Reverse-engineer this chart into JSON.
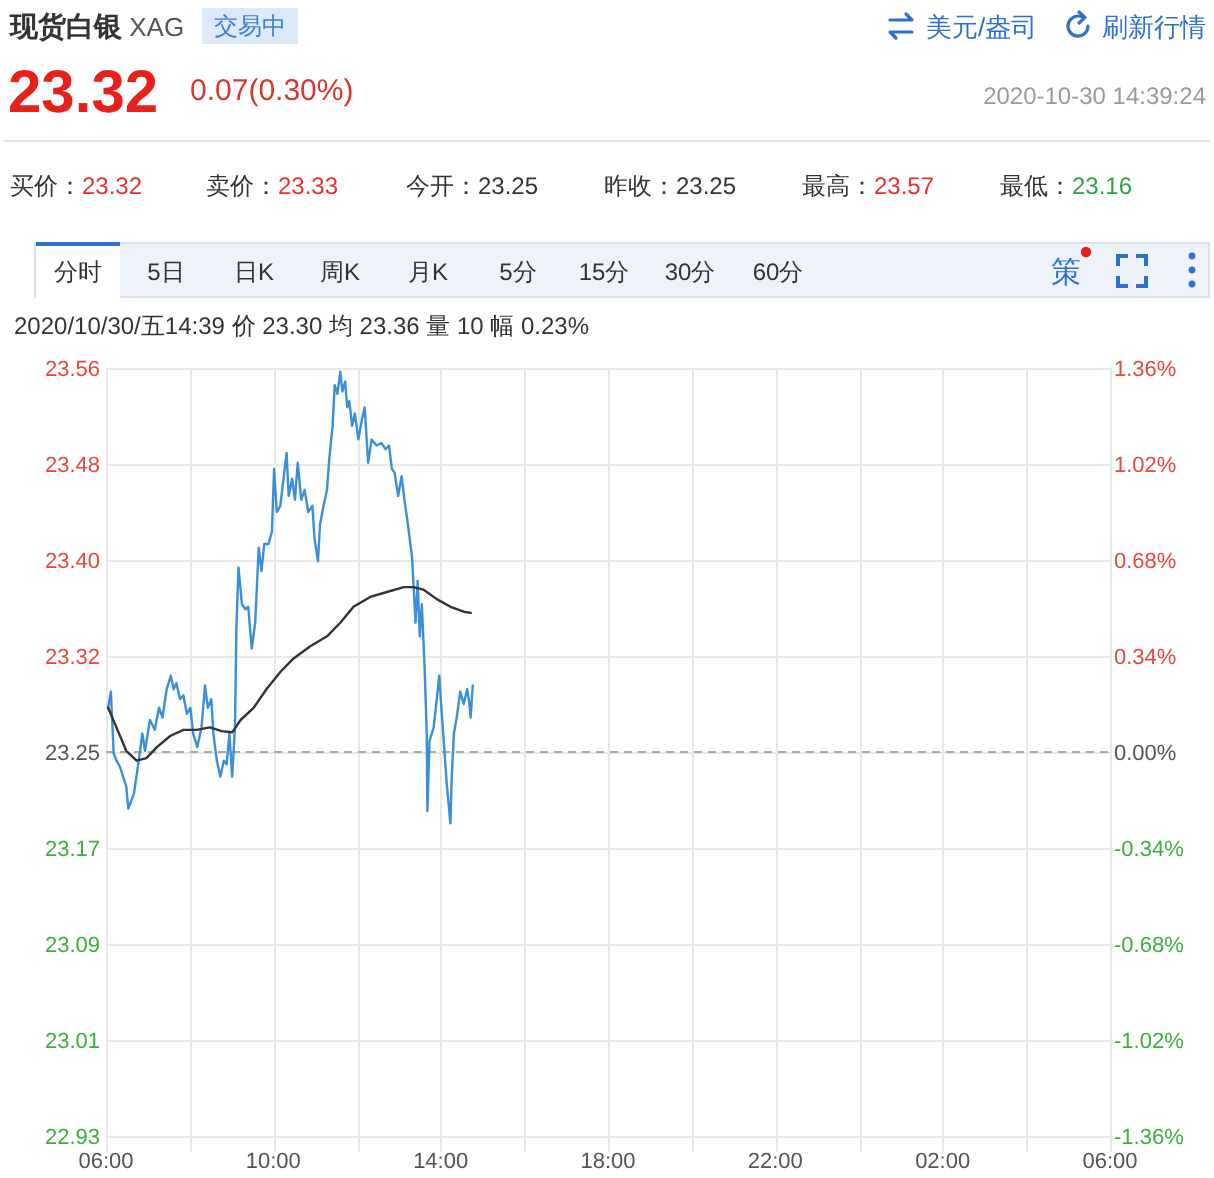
{
  "chart_data": [
    {
      "type": "other",
      "title": "现货白银 XAG",
      "annotations": [
        "交易中",
        "美元/盎司",
        "刷新行情",
        "23.32",
        "0.07(0.30%)",
        "2020-10-30 14:39:24",
        "买价：23.32",
        "卖价：23.33",
        "今开：23.25",
        "昨收：23.25",
        "最高：23.57",
        "最低：23.16",
        "分时",
        "5日",
        "日K",
        "周K",
        "月K",
        "5分",
        "15分",
        "30分",
        "60分",
        "策"
      ]
    },
    {
      "type": "line",
      "subtitle": "2020/10/30/五14:39 价 23.30 均 23.36 量 10 幅 0.23%",
      "xlim": [
        "2020-10-30T06:00",
        "2020-10-31T06:00"
      ],
      "xticks": [
        {
          "value": "2020-10-30T06:00",
          "label": "06:00"
        },
        {
          "value": "2020-10-30T08:00",
          "label": null
        },
        {
          "value": "2020-10-30T10:00",
          "label": "10:00"
        },
        {
          "value": "2020-10-30T12:00",
          "label": null
        },
        {
          "value": "2020-10-30T14:00",
          "label": "14:00"
        },
        {
          "value": "2020-10-30T16:00",
          "label": null
        },
        {
          "value": "2020-10-30T18:00",
          "label": "18:00"
        },
        {
          "value": "2020-10-30T20:00",
          "label": null
        },
        {
          "value": "2020-10-30T22:00",
          "label": "22:00"
        },
        {
          "value": "2020-10-31T00:00",
          "label": null
        },
        {
          "value": "2020-10-31T02:00",
          "label": "02:00"
        },
        {
          "value": "2020-10-31T04:00",
          "label": null
        },
        {
          "value": "2020-10-31T06:00",
          "label": "06:00"
        }
      ],
      "ylim": [
        22.934,
        23.558
      ],
      "yticks": [
        {
          "value": 22.934,
          "label": "22.93"
        },
        {
          "value": 23.012,
          "label": "23.01"
        },
        {
          "value": 23.09,
          "label": "23.09"
        },
        {
          "value": 23.168,
          "label": "23.17"
        },
        {
          "value": 23.246,
          "label": "23.25"
        },
        {
          "value": 23.324,
          "label": "23.32"
        },
        {
          "value": 23.402,
          "label": "23.40"
        },
        {
          "value": 23.48,
          "label": "23.48"
        },
        {
          "value": 23.558,
          "label": "23.56"
        }
      ],
      "y2lim": [
        -1.36,
        1.36
      ],
      "y2ticks": [
        {
          "value": -1.36,
          "label": "-1.36%"
        },
        {
          "value": -1.02,
          "label": "-1.02%"
        },
        {
          "value": -0.68,
          "label": "-0.68%"
        },
        {
          "value": -0.34,
          "label": "-0.34%"
        },
        {
          "value": 0,
          "label": "0.00%"
        },
        {
          "value": 0.34,
          "label": "0.34%"
        },
        {
          "value": 0.68,
          "label": "0.68%"
        },
        {
          "value": 1.02,
          "label": "1.02%"
        },
        {
          "value": 1.36,
          "label": "1.36%"
        }
      ],
      "grid": true,
      "ref_lines": [
        {
          "axis": "y",
          "value": 23.246,
          "color": "#aaaaaa",
          "line_style": "dashed"
        }
      ],
      "series": [
        {
          "color": "#3a8fd8",
          "x": [
            "2020-10-30T06:03",
            "2020-10-30T06:07",
            "2020-10-30T06:11",
            "2020-10-30T06:15",
            "2020-10-30T06:20",
            "2020-10-30T06:29",
            "2020-10-30T06:32",
            "2020-10-30T06:40",
            "2020-10-30T06:47",
            "2020-10-30T06:52",
            "2020-10-30T06:56",
            "2020-10-30T07:03",
            "2020-10-30T07:10",
            "2020-10-30T07:16",
            "2020-10-30T07:21",
            "2020-10-30T07:27",
            "2020-10-30T07:33",
            "2020-10-30T07:37",
            "2020-10-30T07:41",
            "2020-10-30T07:46",
            "2020-10-30T07:51",
            "2020-10-30T07:56",
            "2020-10-30T08:01",
            "2020-10-30T08:05",
            "2020-10-30T08:11",
            "2020-10-30T08:17",
            "2020-10-30T08:22",
            "2020-10-30T08:26",
            "2020-10-30T08:31",
            "2020-10-30T08:34",
            "2020-10-30T08:39",
            "2020-10-30T08:44",
            "2020-10-30T08:49",
            "2020-10-30T08:53",
            "2020-10-30T08:57",
            "2020-10-30T09:01",
            "2020-10-30T09:05",
            "2020-10-30T09:07",
            "2020-10-30T09:10",
            "2020-10-30T09:15",
            "2020-10-30T09:20",
            "2020-10-30T09:24",
            "2020-10-30T09:29",
            "2020-10-30T09:34",
            "2020-10-30T09:39",
            "2020-10-30T09:43",
            "2020-10-30T09:47",
            "2020-10-30T09:53",
            "2020-10-30T09:58",
            "2020-10-30T10:01",
            "2020-10-30T10:05",
            "2020-10-30T10:10",
            "2020-10-30T10:14",
            "2020-10-30T10:19",
            "2020-10-30T10:22",
            "2020-10-30T10:27",
            "2020-10-30T10:31",
            "2020-10-30T10:35",
            "2020-10-30T10:40",
            "2020-10-30T10:45",
            "2020-10-30T10:50",
            "2020-10-30T10:56",
            "2020-10-30T10:59",
            "2020-10-30T11:04",
            "2020-10-30T11:07",
            "2020-10-30T11:12",
            "2020-10-30T11:17",
            "2020-10-30T11:20",
            "2020-10-30T11:25",
            "2020-10-30T11:28",
            "2020-10-30T11:32",
            "2020-10-30T11:36",
            "2020-10-30T11:39",
            "2020-10-30T11:43",
            "2020-10-30T11:46",
            "2020-10-30T11:49",
            "2020-10-30T11:53",
            "2020-10-30T11:57",
            "2020-10-30T12:02",
            "2020-10-30T12:07",
            "2020-10-30T12:11",
            "2020-10-30T12:16",
            "2020-10-30T12:21",
            "2020-10-30T12:28",
            "2020-10-30T12:35",
            "2020-10-30T12:41",
            "2020-10-30T12:46",
            "2020-10-30T12:50",
            "2020-10-30T12:54",
            "2020-10-30T12:59",
            "2020-10-30T13:04",
            "2020-10-30T13:08",
            "2020-10-30T13:13",
            "2020-10-30T13:19",
            "2020-10-30T13:21",
            "2020-10-30T13:24",
            "2020-10-30T13:27",
            "2020-10-30T13:30",
            "2020-10-30T13:33",
            "2020-10-30T13:37",
            "2020-10-30T13:40",
            "2020-10-30T13:41",
            "2020-10-30T13:44",
            "2020-10-30T13:50",
            "2020-10-30T13:55",
            "2020-10-30T13:58",
            "2020-10-30T14:01",
            "2020-10-30T14:05",
            "2020-10-30T14:09",
            "2020-10-30T14:14",
            "2020-10-30T14:16",
            "2020-10-30T14:19",
            "2020-10-30T14:23",
            "2020-10-30T14:28",
            "2020-10-30T14:33",
            "2020-10-30T14:38",
            "2020-10-30T14:41",
            "2020-10-30T14:43",
            "2020-10-30T14:46"
          ],
          "values": [
            23.282,
            23.295,
            23.245,
            23.239,
            23.234,
            23.218,
            23.2,
            23.212,
            23.239,
            23.261,
            23.247,
            23.272,
            23.264,
            23.282,
            23.274,
            23.297,
            23.308,
            23.297,
            23.302,
            23.289,
            23.292,
            23.277,
            23.282,
            23.261,
            23.25,
            23.266,
            23.3,
            23.282,
            23.289,
            23.261,
            23.239,
            23.226,
            23.239,
            23.236,
            23.261,
            23.226,
            23.266,
            23.346,
            23.396,
            23.366,
            23.362,
            23.364,
            23.33,
            23.351,
            23.412,
            23.393,
            23.415,
            23.415,
            23.425,
            23.476,
            23.441,
            23.446,
            23.465,
            23.489,
            23.454,
            23.468,
            23.451,
            23.481,
            23.451,
            23.459,
            23.441,
            23.446,
            23.42,
            23.401,
            23.431,
            23.446,
            23.459,
            23.483,
            23.511,
            23.544,
            23.537,
            23.555,
            23.539,
            23.547,
            23.526,
            23.531,
            23.511,
            23.521,
            23.5,
            23.516,
            23.526,
            23.481,
            23.5,
            23.495,
            23.497,
            23.492,
            23.495,
            23.476,
            23.473,
            23.454,
            23.47,
            23.451,
            23.431,
            23.404,
            23.382,
            23.351,
            23.385,
            23.34,
            23.366,
            23.314,
            23.261,
            23.198,
            23.255,
            23.266,
            23.292,
            23.308,
            23.282,
            23.25,
            23.218,
            23.188,
            23.228,
            23.261,
            23.274,
            23.295,
            23.285,
            23.297,
            23.286,
            23.274,
            23.3
          ]
        },
        {
          "color": "#333333",
          "x": [
            "2020-10-30T06:03",
            "2020-10-30T06:15",
            "2020-10-30T06:29",
            "2020-10-30T06:44",
            "2020-10-30T06:58",
            "2020-10-30T07:13",
            "2020-10-30T07:32",
            "2020-10-30T07:51",
            "2020-10-30T08:10",
            "2020-10-30T08:29",
            "2020-10-30T08:46",
            "2020-10-30T09:01",
            "2020-10-30T09:13",
            "2020-10-30T09:32",
            "2020-10-30T09:50",
            "2020-10-30T10:10",
            "2020-10-30T10:29",
            "2020-10-30T10:53",
            "2020-10-30T11:17",
            "2020-10-30T11:36",
            "2020-10-30T11:55",
            "2020-10-30T12:19",
            "2020-10-30T12:43",
            "2020-10-30T13:07",
            "2020-10-30T13:21",
            "2020-10-30T13:35",
            "2020-10-30T13:55",
            "2020-10-30T14:14",
            "2020-10-30T14:33",
            "2020-10-30T14:43"
          ],
          "values": [
            23.282,
            23.266,
            23.247,
            23.239,
            23.241,
            23.25,
            23.259,
            23.264,
            23.264,
            23.266,
            23.263,
            23.262,
            23.272,
            23.282,
            23.297,
            23.311,
            23.322,
            23.332,
            23.34,
            23.351,
            23.364,
            23.372,
            23.376,
            23.38,
            23.38,
            23.378,
            23.37,
            23.364,
            23.36,
            23.359
          ]
        }
      ]
    }
  ]
}
